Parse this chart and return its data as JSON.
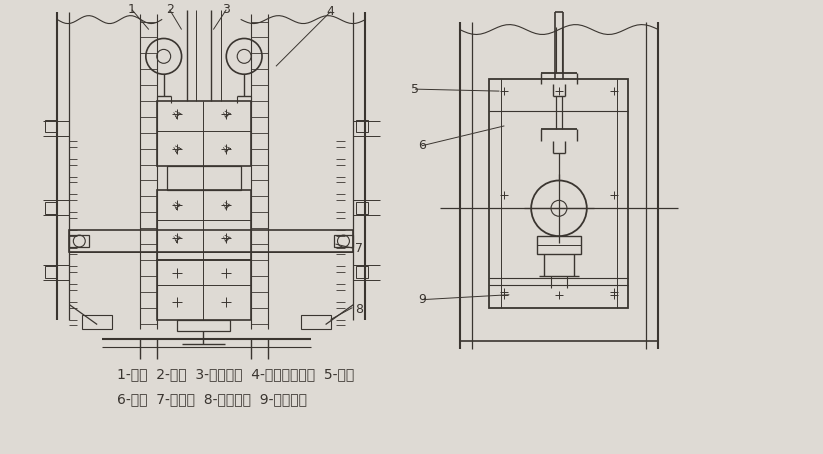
{
  "bg_color": "#dedad4",
  "line_color": "#3a3530",
  "text_color": "#3a3530",
  "legend_line1": "1-链条  2-料斗  3-丝杠螺杆  4-滑板升降螺母  5-滑板",
  "legend_line2": "6-机壳  7-轴承座  8-链轮及轴  9-滑板压条",
  "fig_width": 8.23,
  "fig_height": 4.54,
  "dpi": 100
}
